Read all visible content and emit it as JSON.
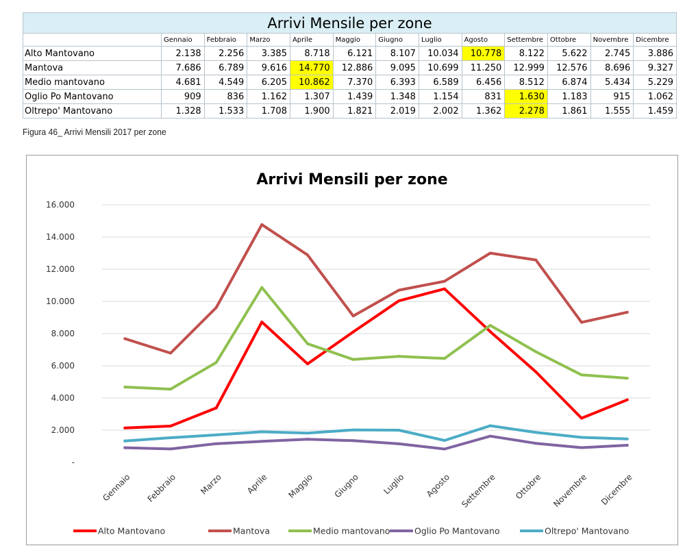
{
  "table": {
    "title": "Arrivi Mensile  per zone",
    "months": [
      "Gennaio",
      "Febbraio",
      "Marzo",
      "Aprile",
      "Maggio",
      "Giugno",
      "Luglio",
      "Agosto",
      "Settembre",
      "Ottobre",
      "Novembre",
      "Dicembre"
    ],
    "rows": [
      {
        "zone": "Alto Mantovano",
        "values": [
          "2.138",
          "2.256",
          "3.385",
          "8.718",
          "6.121",
          "8.107",
          "10.034",
          "10.778",
          "8.122",
          "5.622",
          "2.745",
          "3.886"
        ],
        "highlight": [
          7
        ]
      },
      {
        "zone": "Mantova",
        "values": [
          "7.686",
          "6.789",
          "9.616",
          "14.770",
          "12.886",
          "9.095",
          "10.699",
          "11.250",
          "12.999",
          "12.576",
          "8.696",
          "9.327"
        ],
        "highlight": [
          3
        ]
      },
      {
        "zone": "Medio mantovano",
        "values": [
          "4.681",
          "4.549",
          "6.205",
          "10.862",
          "7.370",
          "6.393",
          "6.589",
          "6.456",
          "8.512",
          "6.874",
          "5.434",
          "5.229"
        ],
        "highlight": [
          3
        ]
      },
      {
        "zone": "Oglio Po Mantovano",
        "values": [
          "909",
          "836",
          "1.162",
          "1.307",
          "1.439",
          "1.348",
          "1.154",
          "831",
          "1.630",
          "1.183",
          "915",
          "1.062"
        ],
        "highlight": [
          8
        ]
      },
      {
        "zone": "Oltrepo' Mantovano",
        "values": [
          "1.328",
          "1.533",
          "1.708",
          "1.900",
          "1.821",
          "2.019",
          "2.002",
          "1.362",
          "2.278",
          "1.861",
          "1.555",
          "1.459"
        ],
        "highlight": [
          8
        ]
      }
    ],
    "highlight_color": "#ffff00"
  },
  "caption": "Figura 46_ Arrivi Mensili 2017 per zone",
  "chart_data": {
    "type": "line",
    "title": "Arrivi Mensili per zone",
    "categories": [
      "Gennaio",
      "Febbraio",
      "Marzo",
      "Aprile",
      "Maggio",
      "Giugno",
      "Luglio",
      "Agosto",
      "Settembre",
      "Ottobre",
      "Novembre",
      "Dicembre"
    ],
    "ylim": [
      0,
      16000
    ],
    "yticks": [
      0,
      2000,
      4000,
      6000,
      8000,
      10000,
      12000,
      14000,
      16000
    ],
    "ytick_labels": [
      "-",
      "2.000",
      "4.000",
      "6.000",
      "8.000",
      "10.000",
      "12.000",
      "14.000",
      "16.000"
    ],
    "grid": "horizontal",
    "legend_position": "bottom",
    "series": [
      {
        "name": "Alto Mantovano",
        "color": "#ff0000",
        "values": [
          2138,
          2256,
          3385,
          8718,
          6121,
          8107,
          10034,
          10778,
          8122,
          5622,
          2745,
          3886
        ]
      },
      {
        "name": "Mantova",
        "color": "#c0504d",
        "values": [
          7686,
          6789,
          9616,
          14770,
          12886,
          9095,
          10699,
          11250,
          12999,
          12576,
          8696,
          9327
        ]
      },
      {
        "name": "Medio mantovano",
        "color": "#8fc04f",
        "values": [
          4681,
          4549,
          6205,
          10862,
          7370,
          6393,
          6589,
          6456,
          8512,
          6874,
          5434,
          5229
        ]
      },
      {
        "name": "Oglio Po Mantovano",
        "color": "#8064a2",
        "values": [
          909,
          836,
          1162,
          1307,
          1439,
          1348,
          1154,
          831,
          1630,
          1183,
          915,
          1062
        ]
      },
      {
        "name": "Oltrepo' Mantovano",
        "color": "#4bacc6",
        "values": [
          1328,
          1533,
          1708,
          1900,
          1821,
          2019,
          2002,
          1362,
          2278,
          1861,
          1555,
          1459
        ]
      }
    ]
  }
}
